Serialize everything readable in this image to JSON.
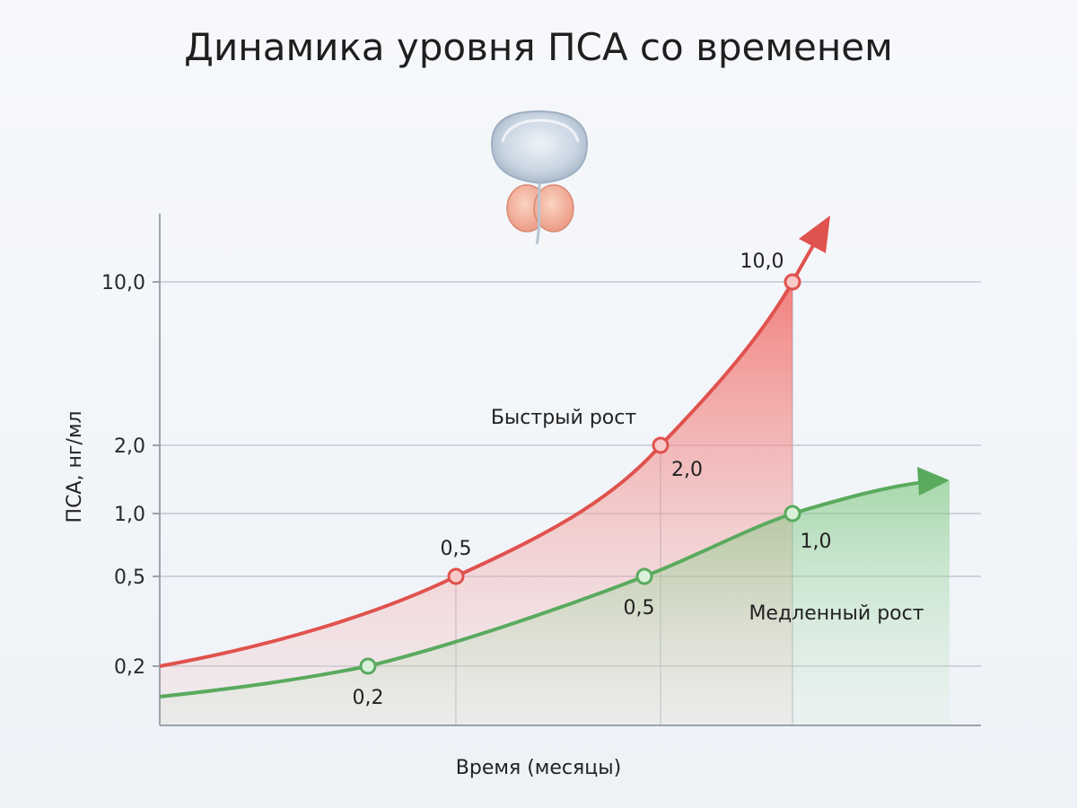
{
  "chart_data": {
    "type": "line",
    "title": "Динамика уровня ПСА со временем",
    "xlabel": "Время (месяцы)",
    "ylabel": "ПСА, нг/мл",
    "y_scale": "categorical-ticks",
    "y_ticks": [
      {
        "value": 10.0,
        "label": "10,0"
      },
      {
        "value": 2.0,
        "label": "2,0"
      },
      {
        "value": 1.0,
        "label": "1,0"
      },
      {
        "value": 0.5,
        "label": "0,5"
      },
      {
        "value": 0.2,
        "label": "0,2"
      }
    ],
    "grid": true,
    "series": [
      {
        "name": "Быстрый рост",
        "color": "#e0524e",
        "points": [
          {
            "value": 0.5,
            "label": "0,5"
          },
          {
            "value": 2.0,
            "label": "2,0"
          },
          {
            "value": 10.0,
            "label": "10,0"
          }
        ]
      },
      {
        "name": "Медленный рост",
        "color": "#5aaa5e",
        "points": [
          {
            "value": 0.2,
            "label": "0,2"
          },
          {
            "value": 0.5,
            "label": "0,5"
          },
          {
            "value": 1.0,
            "label": "1,0"
          }
        ]
      }
    ],
    "icon": "prostate-illustration"
  }
}
